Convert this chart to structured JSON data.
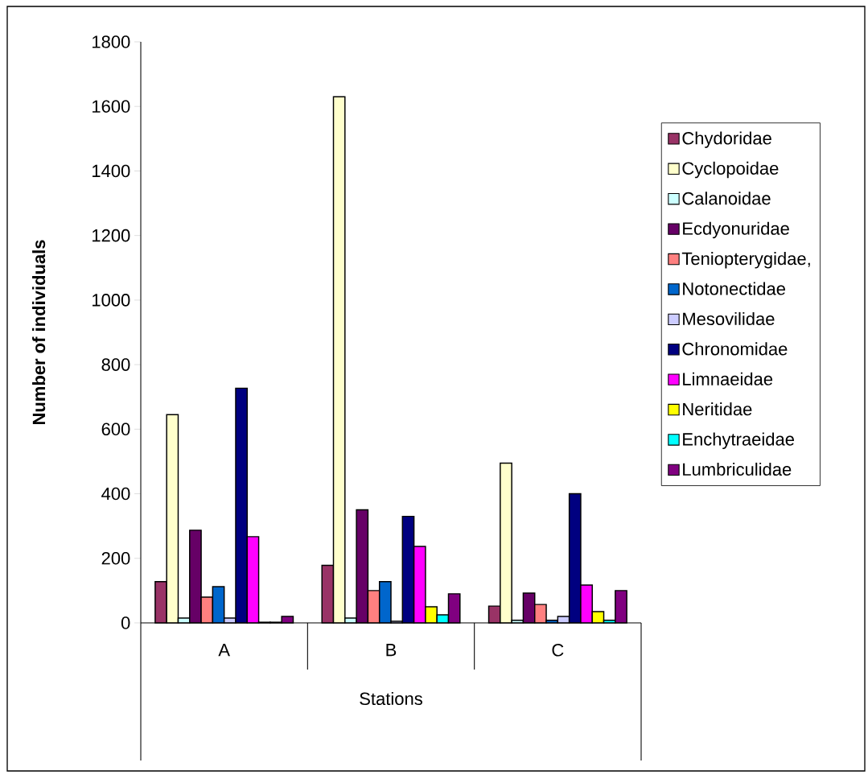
{
  "chart_data": {
    "type": "bar",
    "xlabel": "Stations",
    "ylabel": "Number of individuals",
    "categories": [
      "A",
      "B",
      "C"
    ],
    "ylim": [
      0,
      1800
    ],
    "yticks": [
      0,
      200,
      400,
      600,
      800,
      1000,
      1200,
      1400,
      1600,
      1800
    ],
    "legend": "right",
    "series": [
      {
        "name": "Chydoridae",
        "color": "#993366",
        "values": [
          128,
          178,
          52
        ]
      },
      {
        "name": "Cyclopoidae",
        "color": "#ffffcc",
        "values": [
          645,
          1630,
          495
        ]
      },
      {
        "name": "Calanoidae",
        "color": "#ccffff",
        "values": [
          15,
          15,
          8
        ]
      },
      {
        "name": "Ecdyonuridae",
        "color": "#660066",
        "values": [
          287,
          350,
          92
        ]
      },
      {
        "name": "Teniopterygidae,",
        "color": "#ff8080",
        "values": [
          80,
          100,
          57
        ]
      },
      {
        "name": "Notonectidae",
        "color": "#0066cc",
        "values": [
          112,
          128,
          8
        ]
      },
      {
        "name": "Mesovilidae",
        "color": "#ccccff",
        "values": [
          15,
          5,
          20
        ]
      },
      {
        "name": "Chronomidae",
        "color": "#000080",
        "values": [
          727,
          330,
          400
        ]
      },
      {
        "name": "Limnaeidae",
        "color": "#ff00ff",
        "values": [
          267,
          237,
          117
        ]
      },
      {
        "name": "Neritidae",
        "color": "#ffff00",
        "values": [
          2,
          50,
          35
        ]
      },
      {
        "name": "Enchytraeidae",
        "color": "#00ffff",
        "values": [
          2,
          25,
          8
        ]
      },
      {
        "name": "Lumbriculidae",
        "color": "#800080",
        "values": [
          20,
          90,
          100
        ]
      }
    ]
  }
}
